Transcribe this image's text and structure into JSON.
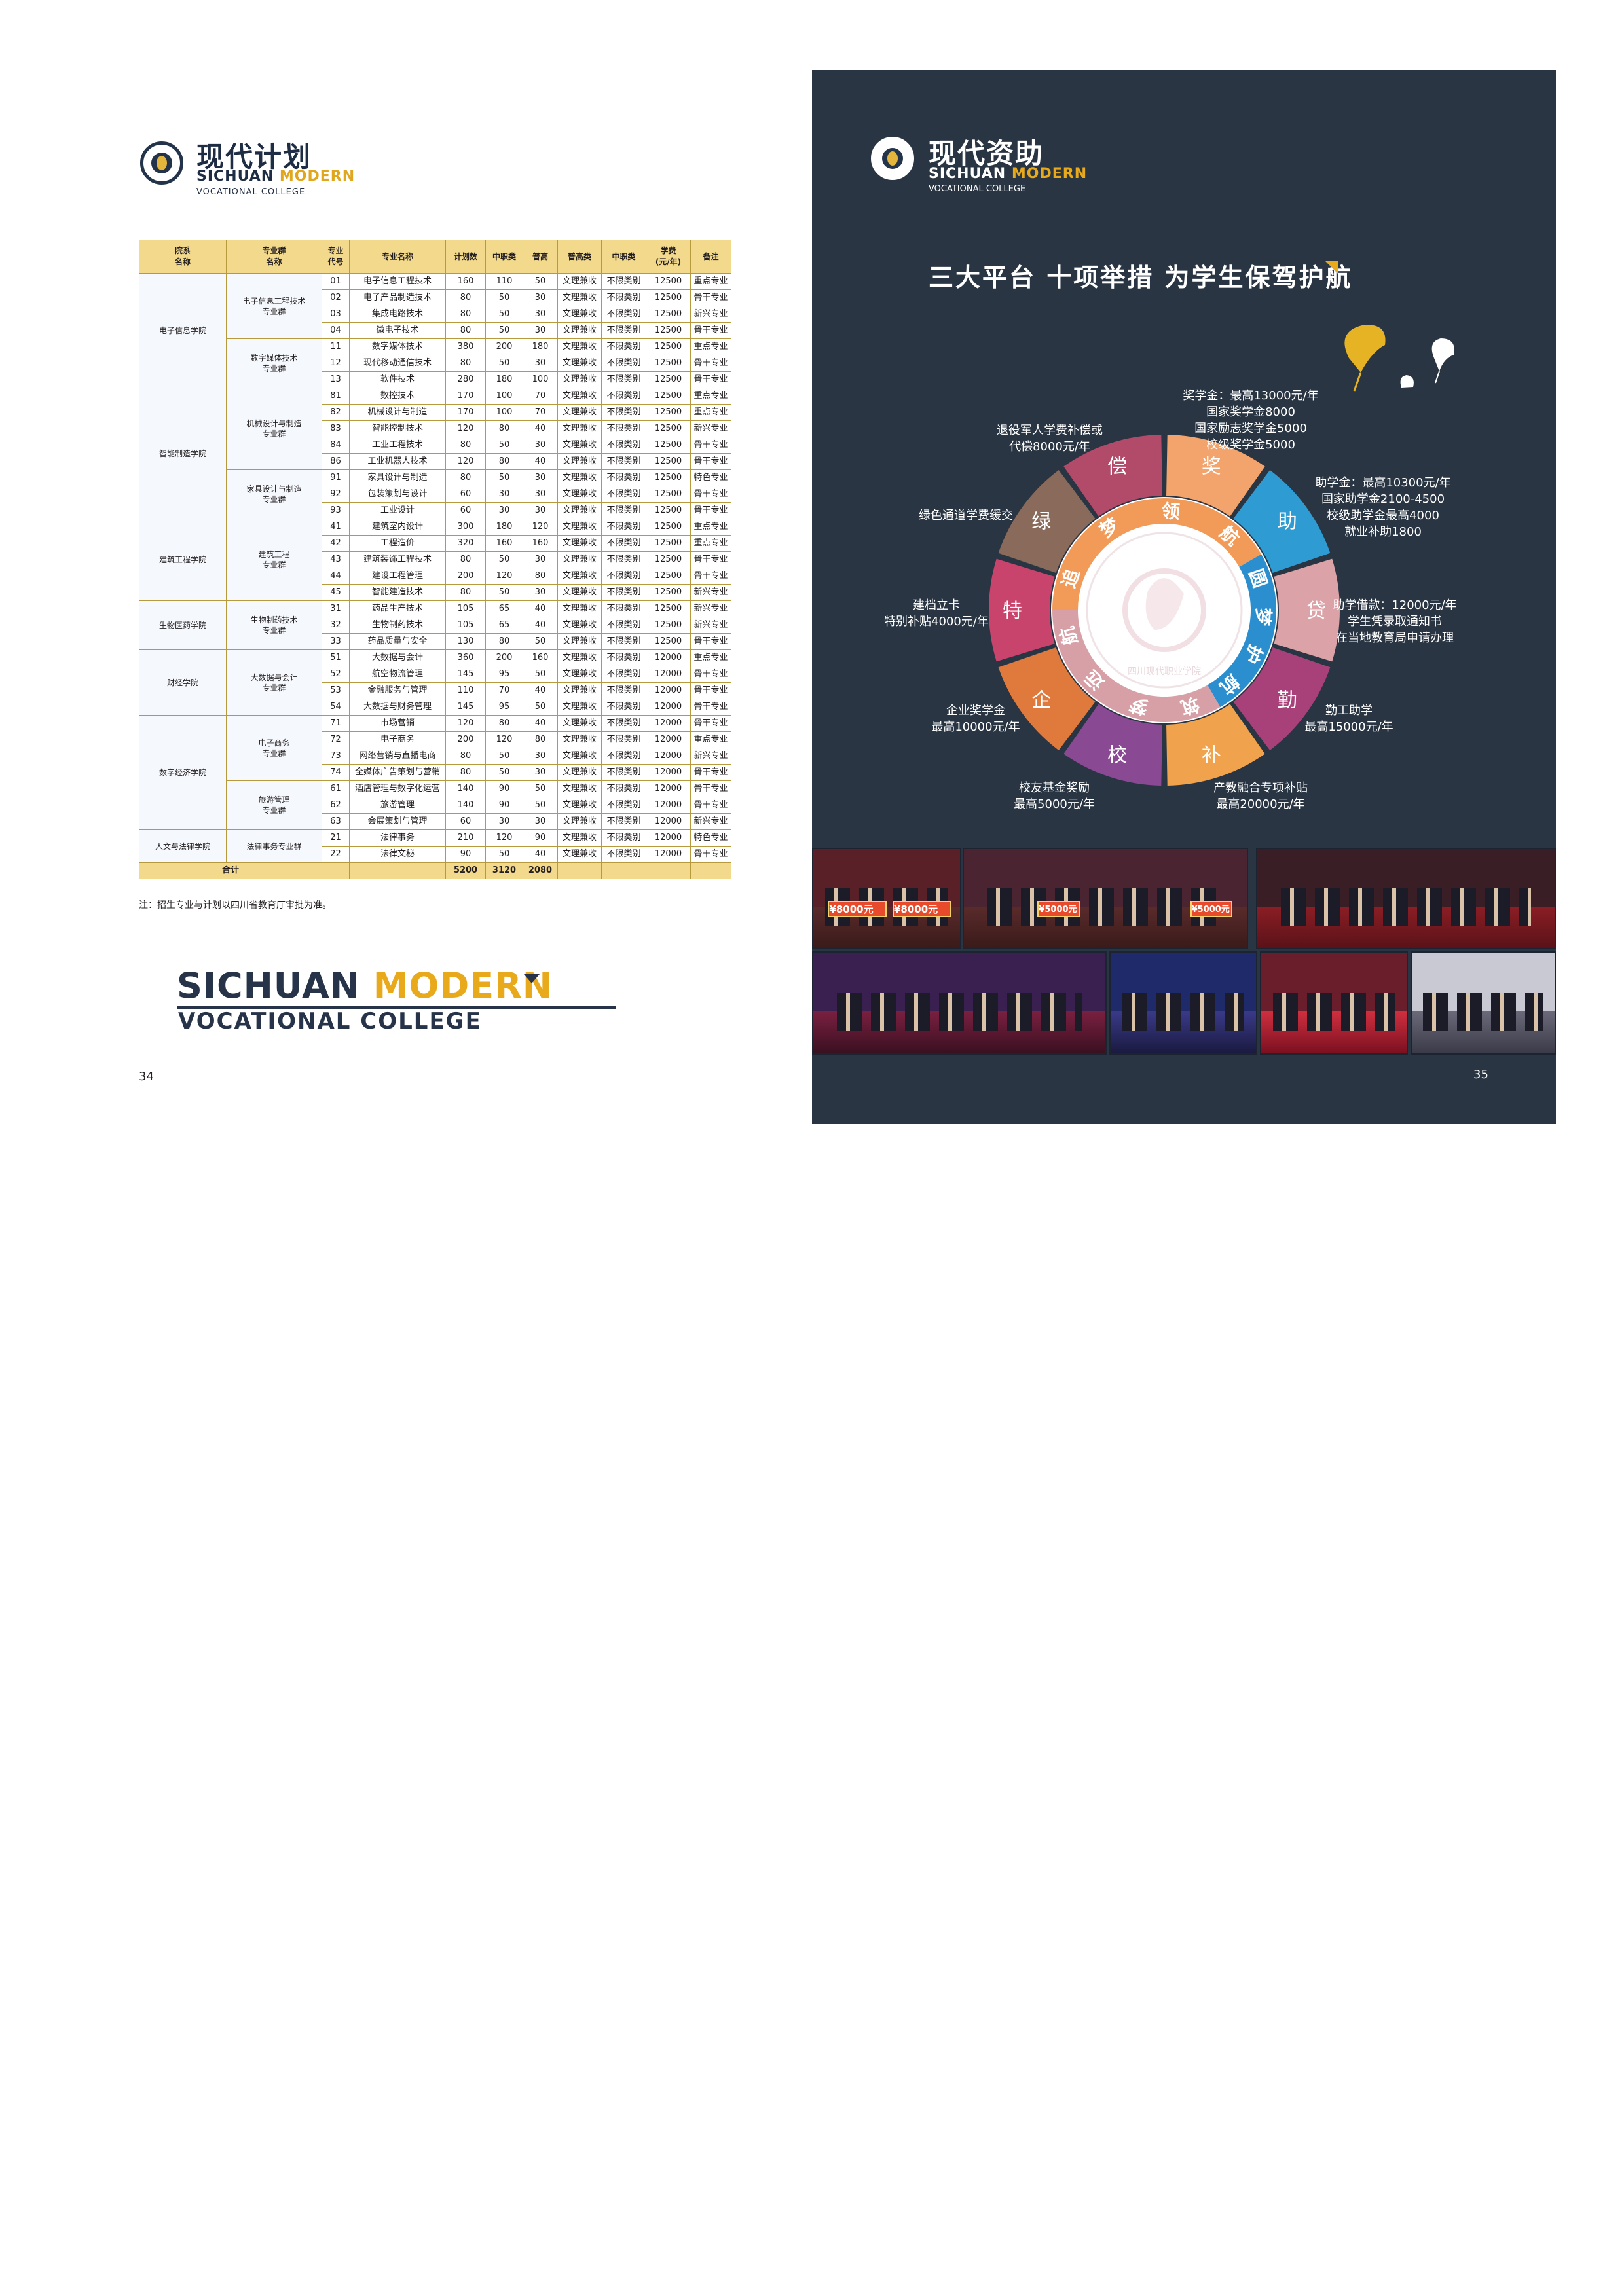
{
  "left_page": {
    "brand_cn": "现代计划",
    "brand_en_1": "SICHUAN",
    "brand_en_2": "MODERN",
    "brand_sub": "VOCATIONAL COLLEGE",
    "headers": [
      "院系\n名称",
      "专业群\n名称",
      "专业\n代号",
      "专业名称",
      "计划数",
      "中职类",
      "普高",
      "普高类",
      "中职类",
      "学费\n(元/年)",
      "备注"
    ],
    "colleges": [
      {
        "name": "电子信息学院",
        "rows": 7
      },
      {
        "name": "智能制造学院",
        "rows": 8
      },
      {
        "name": "建筑工程学院",
        "rows": 5
      },
      {
        "name": "生物医药学院",
        "rows": 3
      },
      {
        "name": "财经学院",
        "rows": 4
      },
      {
        "name": "数字经济学院",
        "rows": 7
      },
      {
        "name": "人文与法律学院",
        "rows": 2
      }
    ],
    "groups": [
      {
        "name": "电子信息工程技术\n专业群",
        "rows": 4
      },
      {
        "name": "数字媒体技术\n专业群",
        "rows": 3
      },
      {
        "name": "机械设计与制造\n专业群",
        "rows": 5
      },
      {
        "name": "家具设计与制造\n专业群",
        "rows": 3
      },
      {
        "name": "建筑工程\n专业群",
        "rows": 5
      },
      {
        "name": "生物制药技术\n专业群",
        "rows": 3
      },
      {
        "name": "大数据与会计\n专业群",
        "rows": 4
      },
      {
        "name": "电子商务\n专业群",
        "rows": 4
      },
      {
        "name": "旅游管理\n专业群",
        "rows": 3
      },
      {
        "name": "法律事务专业群",
        "rows": 2
      }
    ],
    "rows": [
      [
        "01",
        "电子信息工程技术",
        "160",
        "110",
        "50",
        "文理兼收",
        "不限类别",
        "12500",
        "重点专业"
      ],
      [
        "02",
        "电子产品制造技术",
        "80",
        "50",
        "30",
        "文理兼收",
        "不限类别",
        "12500",
        "骨干专业"
      ],
      [
        "03",
        "集成电路技术",
        "80",
        "50",
        "30",
        "文理兼收",
        "不限类别",
        "12500",
        "新兴专业"
      ],
      [
        "04",
        "微电子技术",
        "80",
        "50",
        "30",
        "文理兼收",
        "不限类别",
        "12500",
        "骨干专业"
      ],
      [
        "11",
        "数字媒体技术",
        "380",
        "200",
        "180",
        "文理兼收",
        "不限类别",
        "12500",
        "重点专业"
      ],
      [
        "12",
        "现代移动通信技术",
        "80",
        "50",
        "30",
        "文理兼收",
        "不限类别",
        "12500",
        "骨干专业"
      ],
      [
        "13",
        "软件技术",
        "280",
        "180",
        "100",
        "文理兼收",
        "不限类别",
        "12500",
        "骨干专业"
      ],
      [
        "81",
        "数控技术",
        "170",
        "100",
        "70",
        "文理兼收",
        "不限类别",
        "12500",
        "重点专业"
      ],
      [
        "82",
        "机械设计与制造",
        "170",
        "100",
        "70",
        "文理兼收",
        "不限类别",
        "12500",
        "重点专业"
      ],
      [
        "83",
        "智能控制技术",
        "120",
        "80",
        "40",
        "文理兼收",
        "不限类别",
        "12500",
        "新兴专业"
      ],
      [
        "84",
        "工业工程技术",
        "80",
        "50",
        "30",
        "文理兼收",
        "不限类别",
        "12500",
        "骨干专业"
      ],
      [
        "86",
        "工业机器人技术",
        "120",
        "80",
        "40",
        "文理兼收",
        "不限类别",
        "12500",
        "骨干专业"
      ],
      [
        "91",
        "家具设计与制造",
        "80",
        "50",
        "30",
        "文理兼收",
        "不限类别",
        "12500",
        "特色专业"
      ],
      [
        "92",
        "包装策划与设计",
        "60",
        "30",
        "30",
        "文理兼收",
        "不限类别",
        "12500",
        "骨干专业"
      ],
      [
        "93",
        "工业设计",
        "60",
        "30",
        "30",
        "文理兼收",
        "不限类别",
        "12500",
        "骨干专业"
      ],
      [
        "41",
        "建筑室内设计",
        "300",
        "180",
        "120",
        "文理兼收",
        "不限类别",
        "12500",
        "重点专业"
      ],
      [
        "42",
        "工程造价",
        "320",
        "160",
        "160",
        "文理兼收",
        "不限类别",
        "12500",
        "重点专业"
      ],
      [
        "43",
        "建筑装饰工程技术",
        "80",
        "50",
        "30",
        "文理兼收",
        "不限类别",
        "12500",
        "骨干专业"
      ],
      [
        "44",
        "建设工程管理",
        "200",
        "120",
        "80",
        "文理兼收",
        "不限类别",
        "12500",
        "骨干专业"
      ],
      [
        "45",
        "智能建造技术",
        "80",
        "50",
        "30",
        "文理兼收",
        "不限类别",
        "12500",
        "新兴专业"
      ],
      [
        "31",
        "药品生产技术",
        "105",
        "65",
        "40",
        "文理兼收",
        "不限类别",
        "12500",
        "新兴专业"
      ],
      [
        "32",
        "生物制药技术",
        "105",
        "65",
        "40",
        "文理兼收",
        "不限类别",
        "12500",
        "新兴专业"
      ],
      [
        "33",
        "药品质量与安全",
        "130",
        "80",
        "50",
        "文理兼收",
        "不限类别",
        "12500",
        "骨干专业"
      ],
      [
        "51",
        "大数据与会计",
        "360",
        "200",
        "160",
        "文理兼收",
        "不限类别",
        "12000",
        "重点专业"
      ],
      [
        "52",
        "航空物流管理",
        "145",
        "95",
        "50",
        "文理兼收",
        "不限类别",
        "12000",
        "骨干专业"
      ],
      [
        "53",
        "金融服务与管理",
        "110",
        "70",
        "40",
        "文理兼收",
        "不限类别",
        "12000",
        "骨干专业"
      ],
      [
        "54",
        "大数据与财务管理",
        "145",
        "95",
        "50",
        "文理兼收",
        "不限类别",
        "12000",
        "骨干专业"
      ],
      [
        "71",
        "市场营销",
        "120",
        "80",
        "40",
        "文理兼收",
        "不限类别",
        "12000",
        "骨干专业"
      ],
      [
        "72",
        "电子商务",
        "200",
        "120",
        "80",
        "文理兼收",
        "不限类别",
        "12000",
        "重点专业"
      ],
      [
        "73",
        "网络营销与直播电商",
        "80",
        "50",
        "30",
        "文理兼收",
        "不限类别",
        "12000",
        "新兴专业"
      ],
      [
        "74",
        "全媒体广告策划与营销",
        "80",
        "50",
        "30",
        "文理兼收",
        "不限类别",
        "12000",
        "骨干专业"
      ],
      [
        "61",
        "酒店管理与数字化运营",
        "140",
        "90",
        "50",
        "文理兼收",
        "不限类别",
        "12000",
        "骨干专业"
      ],
      [
        "62",
        "旅游管理",
        "140",
        "90",
        "50",
        "文理兼收",
        "不限类别",
        "12000",
        "骨干专业"
      ],
      [
        "63",
        "会展策划与管理",
        "60",
        "30",
        "30",
        "文理兼收",
        "不限类别",
        "12000",
        "新兴专业"
      ],
      [
        "21",
        "法律事务",
        "210",
        "120",
        "90",
        "文理兼收",
        "不限类别",
        "12000",
        "特色专业"
      ],
      [
        "22",
        "法律文秘",
        "90",
        "50",
        "40",
        "文理兼收",
        "不限类别",
        "12000",
        "骨干专业"
      ]
    ],
    "total": {
      "label": "合计",
      "plan": "5200",
      "zhongzhi": "3120",
      "pugao": "2080"
    },
    "note": "注：招生专业与计划以四川省教育厅审批为准。",
    "footer_en_1": "SICHUAN",
    "footer_en_2": "MODERN",
    "footer_en_3": "VOCATIONAL  COLLEGE",
    "page_number": "34"
  },
  "right_page": {
    "brand_cn": "现代资助",
    "brand_en_1": "SICHUAN",
    "brand_en_2": "MODERN",
    "brand_sub": "VOCATIONAL COLLEGE",
    "slogan": "三大平台  十项举措  为学生保驾护航",
    "wheel": {
      "segments": [
        {
          "char": "奖",
          "color": "#f2a46c"
        },
        {
          "char": "助",
          "color": "#2f9bd3"
        },
        {
          "char": "贷",
          "color": "#dba3a8"
        },
        {
          "char": "勤",
          "color": "#a8407a"
        },
        {
          "char": "补",
          "color": "#f0a24c"
        },
        {
          "char": "校",
          "color": "#8a4a93"
        },
        {
          "char": "企",
          "color": "#e07a3c"
        },
        {
          "char": "特",
          "color": "#c9446c"
        },
        {
          "char": "绿",
          "color": "#8a6a5a"
        },
        {
          "char": "偿",
          "color": "#b24a6a"
        }
      ],
      "arcs": [
        {
          "text": "追梦领航",
          "color": "#f29a58"
        },
        {
          "text": "圆梦护航",
          "color": "#2b8fcf"
        },
        {
          "text": "筑梦远航",
          "color": "#d7a0a6"
        }
      ],
      "center_text": "四川现代职业学院"
    },
    "labels": [
      {
        "key": "jiang",
        "text": "奖学金：最高13000元/年\n国家奖学金8000\n国家励志奖学金5000\n校级奖学金5000"
      },
      {
        "key": "zhu",
        "text": "助学金：最高10300元/年\n国家助学金2100-4500\n校级助学金最高4000\n就业补助1800"
      },
      {
        "key": "dai",
        "text": "助学借款：12000元/年\n学生凭录取通知书\n在当地教育局申请办理"
      },
      {
        "key": "qin",
        "text": "勤工助学\n最高15000元/年"
      },
      {
        "key": "bu",
        "text": "产教融合专项补贴\n最高20000元/年"
      },
      {
        "key": "xiao",
        "text": "校友基金奖励\n最高5000元/年"
      },
      {
        "key": "qi",
        "text": "企业奖学金\n最高10000元/年"
      },
      {
        "key": "te",
        "text": "建档立卡\n特别补贴4000元/年"
      },
      {
        "key": "lv",
        "text": "绿色通道学费缓交"
      },
      {
        "key": "chang",
        "text": "退役军人学费补偿或\n代偿8000元/年"
      }
    ],
    "photo_boards": [
      "¥8000元",
      "¥8000元",
      "¥5000元",
      "¥5000元"
    ],
    "page_number": "35"
  }
}
